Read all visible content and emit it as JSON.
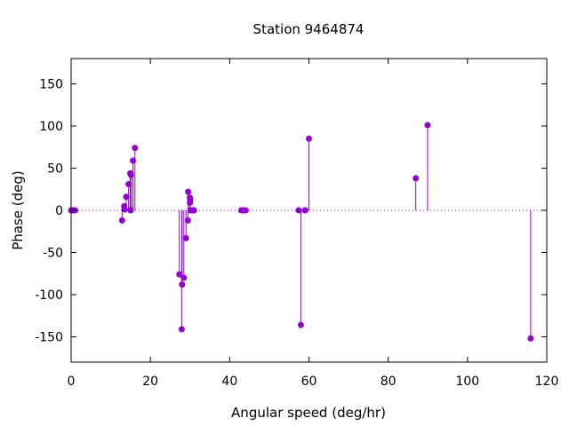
{
  "chart_data": {
    "type": "scatter",
    "style": "impulses with points",
    "title": "Station 9464874",
    "xlabel": "Angular speed (deg/hr)",
    "ylabel": "Phase (deg)",
    "xlim": [
      0,
      120
    ],
    "ylim": [
      -180,
      180
    ],
    "xticks": [
      0,
      20,
      40,
      60,
      80,
      100,
      120
    ],
    "yticks": [
      -150,
      -100,
      -50,
      0,
      50,
      100,
      150
    ],
    "xtick_labels": [
      "0",
      "20",
      "40",
      "60",
      "80",
      "100",
      "120"
    ],
    "ytick_labels": [
      "-150",
      "-100",
      "-50",
      "0",
      "50",
      "100",
      "150"
    ],
    "zero_line": "dotted",
    "grid": false,
    "color": "#9400d3",
    "points": [
      {
        "x": 0.0,
        "y": 0
      },
      {
        "x": 0.04,
        "y": 0
      },
      {
        "x": 0.08,
        "y": 0
      },
      {
        "x": 0.5,
        "y": 0
      },
      {
        "x": 0.55,
        "y": 0
      },
      {
        "x": 1.0,
        "y": 0
      },
      {
        "x": 12.85,
        "y": -12
      },
      {
        "x": 13.4,
        "y": 5
      },
      {
        "x": 13.47,
        "y": 1
      },
      {
        "x": 13.9,
        "y": 16
      },
      {
        "x": 14.5,
        "y": 31
      },
      {
        "x": 14.92,
        "y": 44
      },
      {
        "x": 14.96,
        "y": 0
      },
      {
        "x": 15.04,
        "y": 0
      },
      {
        "x": 15.1,
        "y": 42
      },
      {
        "x": 15.6,
        "y": 59
      },
      {
        "x": 16.1,
        "y": 74
      },
      {
        "x": 27.3,
        "y": -76
      },
      {
        "x": 27.9,
        "y": -141
      },
      {
        "x": 28.0,
        "y": -88
      },
      {
        "x": 28.44,
        "y": -80
      },
      {
        "x": 28.98,
        "y": -33
      },
      {
        "x": 29.46,
        "y": -12
      },
      {
        "x": 29.53,
        "y": 22
      },
      {
        "x": 29.96,
        "y": 15
      },
      {
        "x": 30.0,
        "y": 9
      },
      {
        "x": 30.04,
        "y": 12
      },
      {
        "x": 30.08,
        "y": 0
      },
      {
        "x": 30.6,
        "y": 0
      },
      {
        "x": 31.0,
        "y": 0
      },
      {
        "x": 42.93,
        "y": 0
      },
      {
        "x": 43.48,
        "y": 0
      },
      {
        "x": 44.03,
        "y": 0
      },
      {
        "x": 57.42,
        "y": 0
      },
      {
        "x": 57.97,
        "y": -136
      },
      {
        "x": 58.98,
        "y": 0
      },
      {
        "x": 59.07,
        "y": 0
      },
      {
        "x": 60.0,
        "y": 85
      },
      {
        "x": 86.95,
        "y": 38
      },
      {
        "x": 89.93,
        "y": 101
      },
      {
        "x": 115.94,
        "y": -152
      }
    ]
  }
}
